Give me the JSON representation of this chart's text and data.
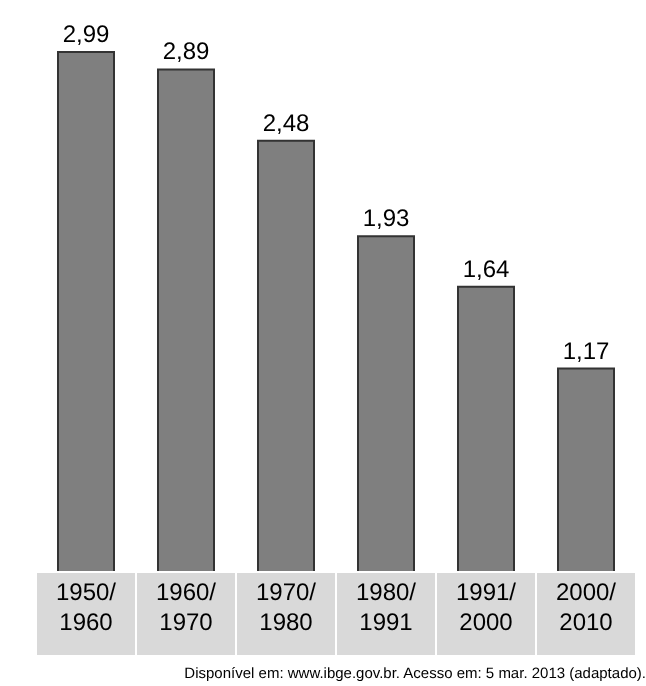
{
  "chart_data": {
    "type": "bar",
    "categories": [
      "1950/\n1960",
      "1960/\n1970",
      "1970/\n1980",
      "1980/\n1991",
      "1991/\n2000",
      "2000/\n2010"
    ],
    "values": [
      2.99,
      2.89,
      2.48,
      1.93,
      1.64,
      1.17
    ],
    "color": "#7f7f7f",
    "value_labels": [
      "2,99",
      "2,89",
      "2,48",
      "1,93",
      "1,64",
      "1,17"
    ],
    "annotations": [
      "Disponível em: www.ibge.gov.br. Acesso em: 5 mar. 2013 (adaptado)."
    ]
  }
}
